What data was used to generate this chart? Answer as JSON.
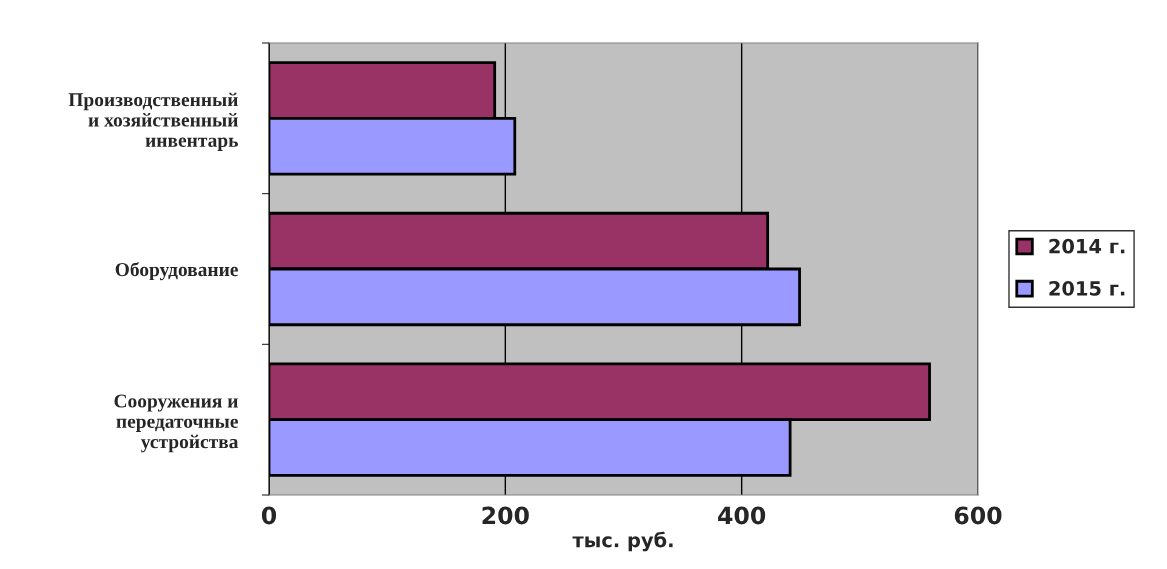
{
  "chart_data": {
    "type": "bar",
    "orientation": "horizontal",
    "categories": [
      "Производственный\nи хозяйственный\nинвентарь",
      "Оборудование",
      "Сооружения и\nпередаточные\nустройства"
    ],
    "series": [
      {
        "name": "2014 г.",
        "color": "#993366",
        "values": [
          191,
          422,
          559
        ]
      },
      {
        "name": "2015 г.",
        "color": "#9999ff",
        "values": [
          208,
          449,
          441
        ]
      }
    ],
    "xlim": [
      0,
      600
    ],
    "xticks": [
      0,
      200,
      400,
      600
    ],
    "xlabel": "тыс. руб.",
    "grid": "x",
    "legend": "right"
  }
}
